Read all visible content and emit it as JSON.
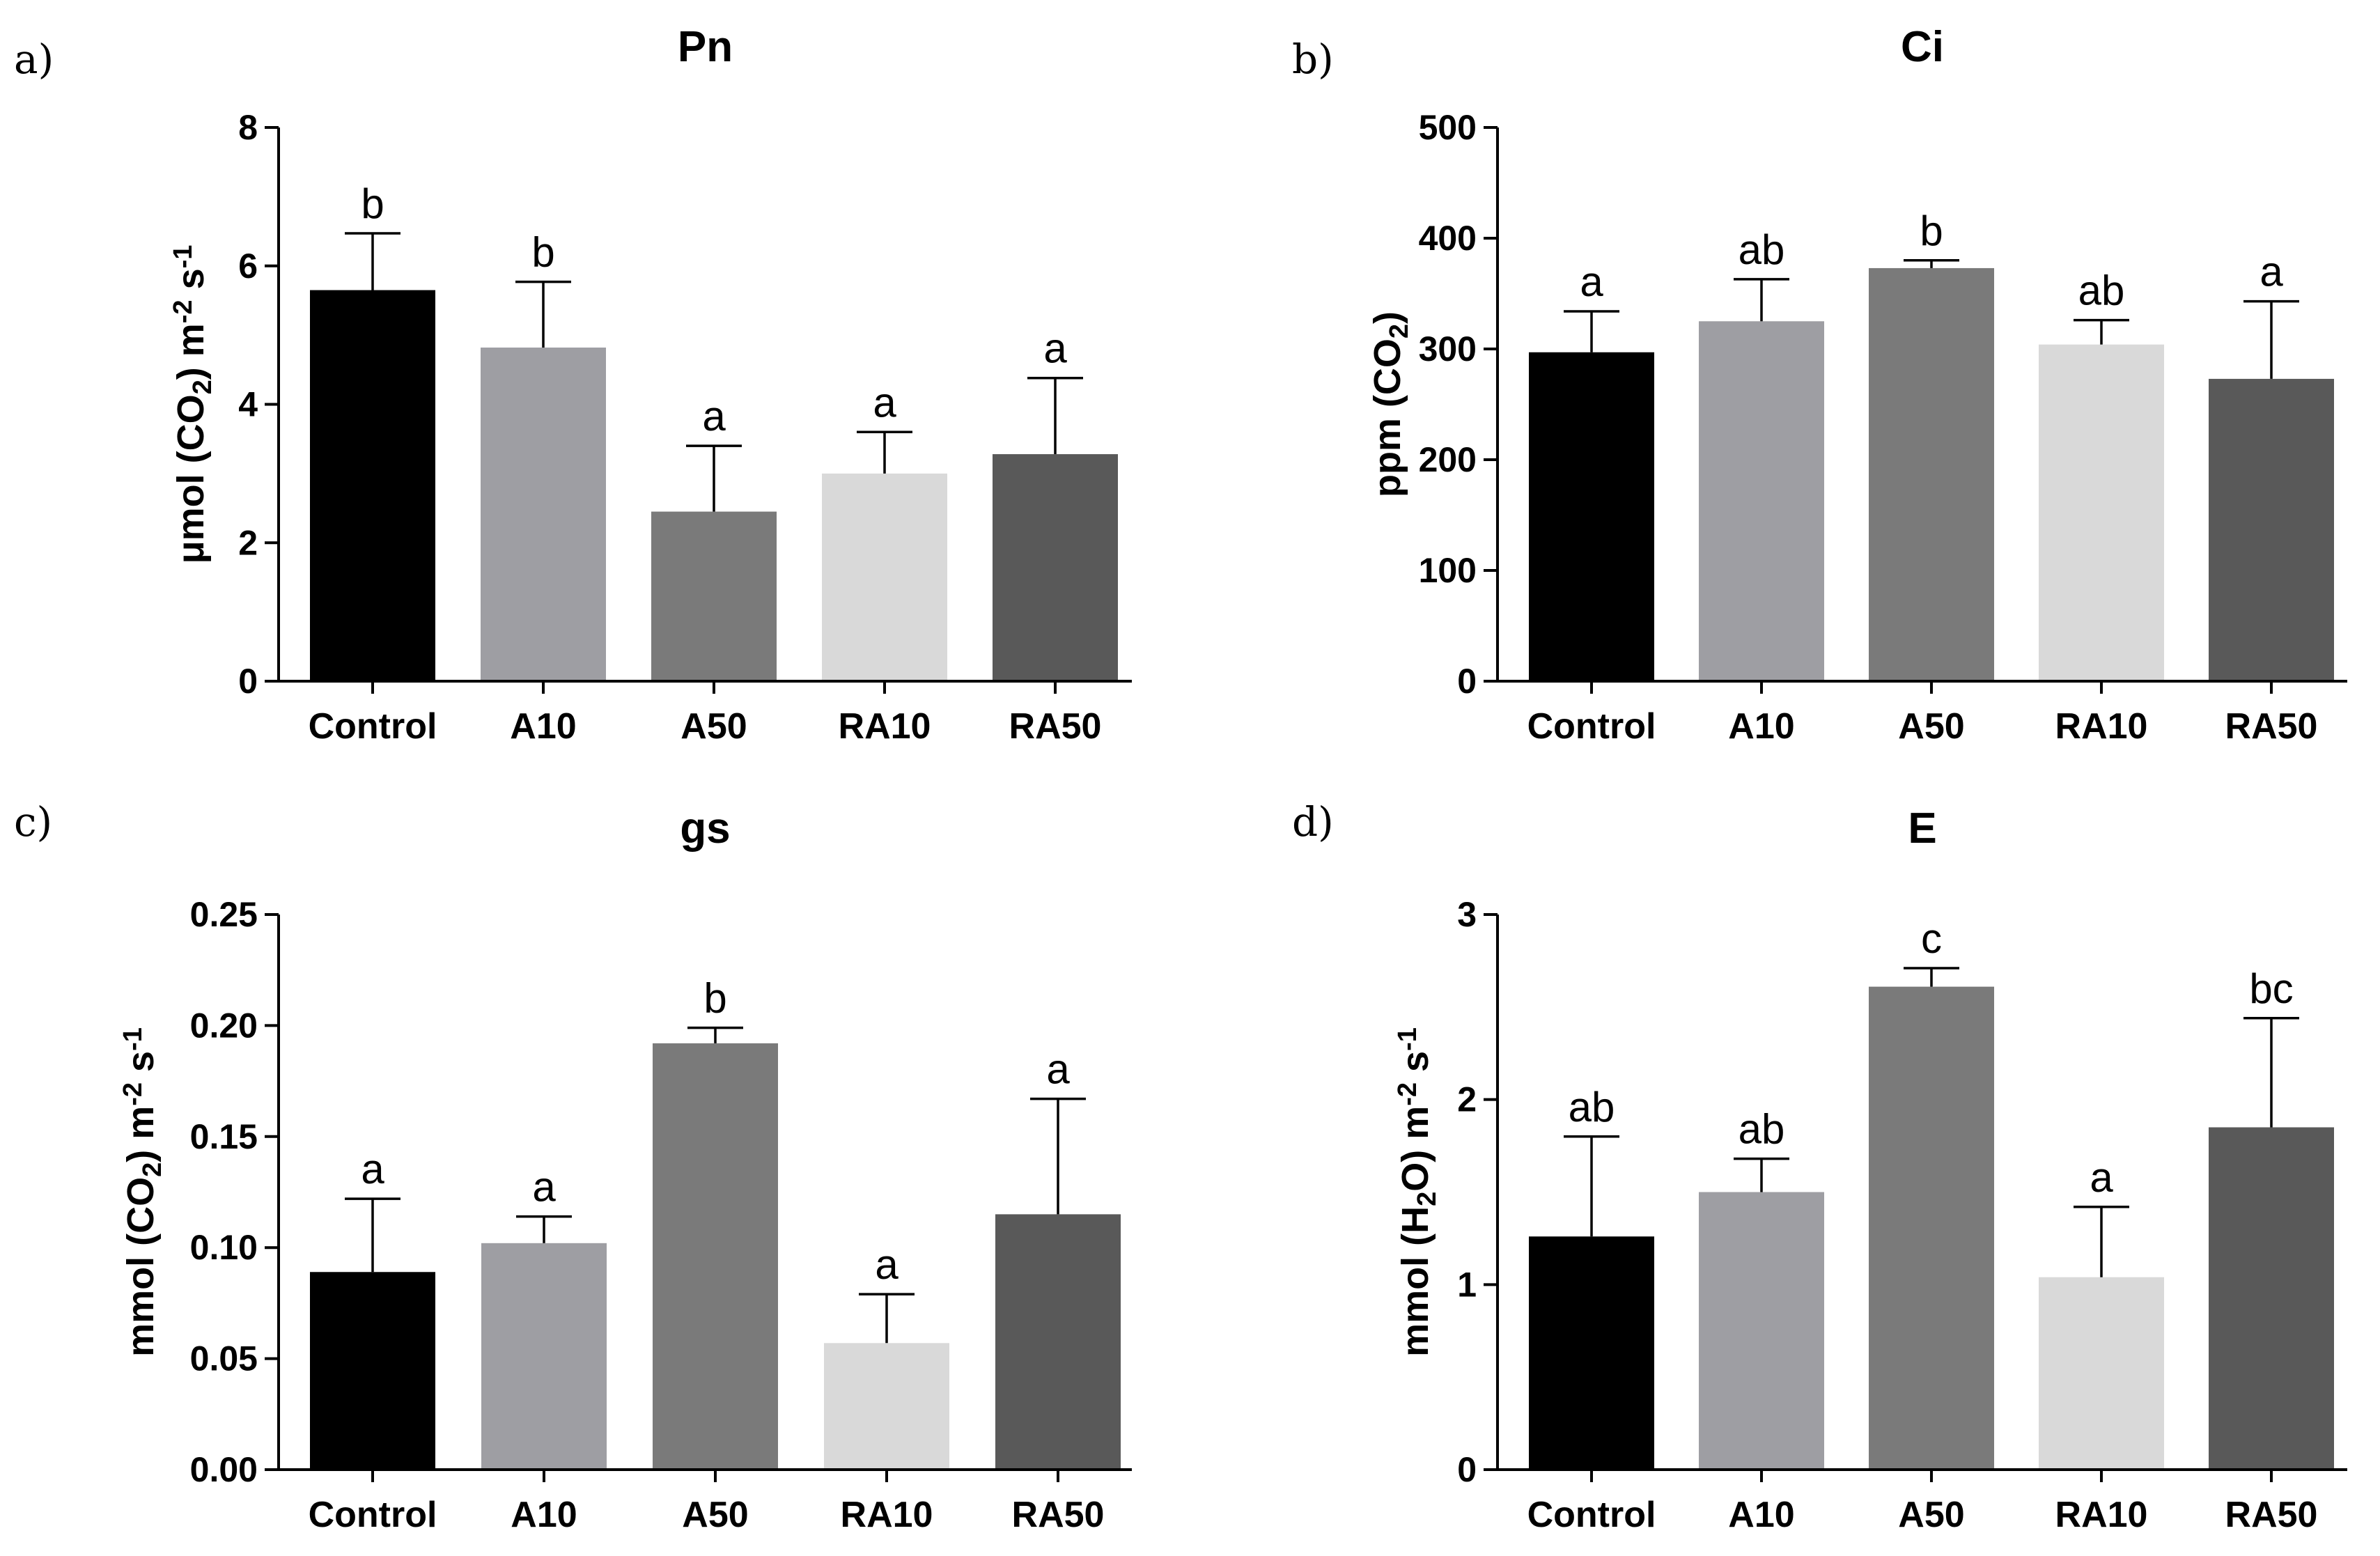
{
  "chart_data": [
    {
      "type": "bar",
      "panel_label": "a)",
      "title": "Pn",
      "ylabel_parts": [
        "μmol (CO",
        "2",
        ") m",
        "-2",
        " s",
        "-1"
      ],
      "categories": [
        "Control",
        "A10",
        "A50",
        "RA10",
        "RA50"
      ],
      "values": [
        5.65,
        4.82,
        2.45,
        3.0,
        3.28
      ],
      "errors": [
        0.82,
        0.95,
        0.95,
        0.6,
        1.1
      ],
      "letters": [
        "b",
        "b",
        "a",
        "a",
        "a"
      ],
      "colors": [
        "#000000",
        "#9e9ea3",
        "#7a7a7a",
        "#d9d9d9",
        "#595959"
      ],
      "ylim": [
        0,
        8
      ],
      "yticks": [
        0,
        2,
        4,
        6,
        8
      ],
      "ytick_labels": [
        "0",
        "2",
        "4",
        "6",
        "8"
      ]
    },
    {
      "type": "bar",
      "panel_label": "b)",
      "title": "Ci",
      "ylabel_parts": [
        "ppm (CO",
        "2",
        ")"
      ],
      "categories": [
        "Control",
        "A10",
        "A50",
        "RA10",
        "RA50"
      ],
      "values": [
        297,
        325,
        373,
        304,
        273
      ],
      "errors": [
        37,
        38,
        7,
        22,
        70
      ],
      "letters": [
        "a",
        "ab",
        "b",
        "ab",
        "a"
      ],
      "colors": [
        "#000000",
        "#9e9ea3",
        "#7a7a7a",
        "#d9d9d9",
        "#595959"
      ],
      "ylim": [
        0,
        500
      ],
      "yticks": [
        0,
        100,
        200,
        300,
        400,
        500
      ],
      "ytick_labels": [
        "0",
        "100",
        "200",
        "300",
        "400",
        "500"
      ]
    },
    {
      "type": "bar",
      "panel_label": "c)",
      "title": "gs",
      "ylabel_parts": [
        "mmol (CO",
        "2",
        ") m",
        "-2",
        " s",
        "-1"
      ],
      "categories": [
        "Control",
        "A10",
        "A50",
        "RA10",
        "RA50"
      ],
      "values": [
        0.089,
        0.102,
        0.192,
        0.057,
        0.115
      ],
      "errors": [
        0.033,
        0.012,
        0.007,
        0.022,
        0.052
      ],
      "letters": [
        "a",
        "a",
        "b",
        "a",
        "a"
      ],
      "colors": [
        "#000000",
        "#9e9ea3",
        "#7a7a7a",
        "#d9d9d9",
        "#595959"
      ],
      "ylim": [
        0,
        0.25
      ],
      "yticks": [
        0,
        0.05,
        0.1,
        0.15,
        0.2,
        0.25
      ],
      "ytick_labels": [
        "0.00",
        "0.05",
        "0.10",
        "0.15",
        "0.20",
        "0.25"
      ]
    },
    {
      "type": "bar",
      "panel_label": "d)",
      "title": "E",
      "ylabel_parts": [
        "mmol (H",
        "2",
        "O) m",
        "-2",
        " s",
        "-1"
      ],
      "categories": [
        "Control",
        "A10",
        "A50",
        "RA10",
        "RA50"
      ],
      "values": [
        1.26,
        1.5,
        2.61,
        1.04,
        1.85
      ],
      "errors": [
        0.54,
        0.18,
        0.1,
        0.38,
        0.59
      ],
      "letters": [
        "ab",
        "ab",
        "c",
        "a",
        "bc"
      ],
      "colors": [
        "#000000",
        "#9e9ea3",
        "#7a7a7a",
        "#d9d9d9",
        "#595959"
      ],
      "ylim": [
        0,
        3
      ],
      "yticks": [
        0,
        1,
        2,
        3
      ],
      "ytick_labels": [
        "0",
        "1",
        "2",
        "3"
      ]
    }
  ]
}
